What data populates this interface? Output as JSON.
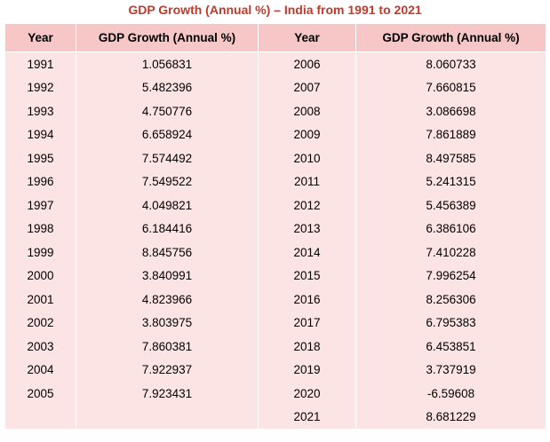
{
  "title": "GDP Growth (Annual %) – India from 1991 to 2021",
  "columns": {
    "left_year": "Year",
    "left_value": "GDP Growth (Annual %)",
    "right_year": "Year",
    "right_value": "GDP Growth (Annual %)"
  },
  "rows": [
    {
      "left_year": "1991",
      "left_value": "1.056831",
      "right_year": "2006",
      "right_value": "8.060733"
    },
    {
      "left_year": "1992",
      "left_value": "5.482396",
      "right_year": "2007",
      "right_value": "7.660815"
    },
    {
      "left_year": "1993",
      "left_value": "4.750776",
      "right_year": "2008",
      "right_value": "3.086698"
    },
    {
      "left_year": "1994",
      "left_value": "6.658924",
      "right_year": "2009",
      "right_value": "7.861889"
    },
    {
      "left_year": "1995",
      "left_value": "7.574492",
      "right_year": "2010",
      "right_value": "8.497585"
    },
    {
      "left_year": "1996",
      "left_value": "7.549522",
      "right_year": "2011",
      "right_value": "5.241315"
    },
    {
      "left_year": "1997",
      "left_value": "4.049821",
      "right_year": "2012",
      "right_value": "5.456389"
    },
    {
      "left_year": "1998",
      "left_value": "6.184416",
      "right_year": "2013",
      "right_value": "6.386106"
    },
    {
      "left_year": "1999",
      "left_value": "8.845756",
      "right_year": "2014",
      "right_value": "7.410228"
    },
    {
      "left_year": "2000",
      "left_value": "3.840991",
      "right_year": "2015",
      "right_value": "7.996254"
    },
    {
      "left_year": "2001",
      "left_value": "4.823966",
      "right_year": "2016",
      "right_value": "8.256306"
    },
    {
      "left_year": "2002",
      "left_value": "3.803975",
      "right_year": "2017",
      "right_value": "6.795383"
    },
    {
      "left_year": "2003",
      "left_value": "7.860381",
      "right_year": "2018",
      "right_value": "6.453851"
    },
    {
      "left_year": "2004",
      "left_value": "7.922937",
      "right_year": "2019",
      "right_value": "3.737919"
    },
    {
      "left_year": "2005",
      "left_value": "7.923431",
      "right_year": "2020",
      "right_value": "-6.59608"
    },
    {
      "left_year": "",
      "left_value": "",
      "right_year": "2021",
      "right_value": "8.681229"
    }
  ],
  "colors": {
    "title": "#c0392b",
    "header_bg": "#f7c7c7",
    "cell_bg": "#fde4e4",
    "grid": "#ffffff"
  }
}
